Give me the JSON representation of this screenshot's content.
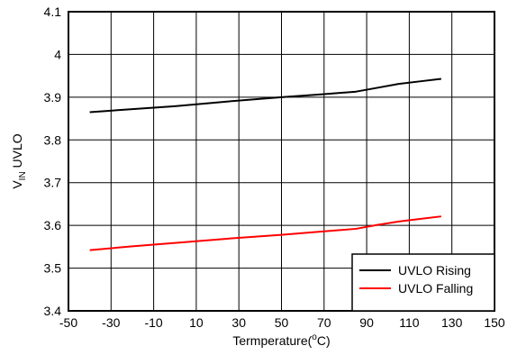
{
  "chart_data": {
    "type": "line",
    "title": "",
    "xlabel": "Termperature(",
    "xlabel_sup": "o",
    "xlabel_unit": "C)",
    "ylabel_main": "V",
    "ylabel_sub": "IN",
    "ylabel_rest": " UVLO",
    "xlim": [
      -50,
      150
    ],
    "ylim": [
      3.4,
      4.1
    ],
    "x_ticks": [
      "-50",
      "-30",
      "-10",
      "10",
      "30",
      "50",
      "70",
      "90",
      "110",
      "130",
      "150"
    ],
    "y_ticks": [
      "3.4",
      "3.5",
      "3.6",
      "3.7",
      "3.8",
      "3.9",
      "4",
      "4.1"
    ],
    "grid": true,
    "legend_position": "bottom-right",
    "series": [
      {
        "name": "UVLO Rising",
        "color": "#000000",
        "x": [
          -40,
          -20,
          0,
          25,
          50,
          70,
          85,
          95,
          105,
          115,
          125
        ],
        "y": [
          3.865,
          3.872,
          3.879,
          3.89,
          3.9,
          3.907,
          3.913,
          3.922,
          3.931,
          3.937,
          3.943
        ]
      },
      {
        "name": "UVLO Falling",
        "color": "#ff0000",
        "x": [
          -40,
          -20,
          0,
          25,
          50,
          70,
          85,
          95,
          105,
          115,
          125
        ],
        "y": [
          3.542,
          3.551,
          3.559,
          3.569,
          3.578,
          3.586,
          3.592,
          3.601,
          3.609,
          3.615,
          3.621
        ]
      }
    ]
  }
}
